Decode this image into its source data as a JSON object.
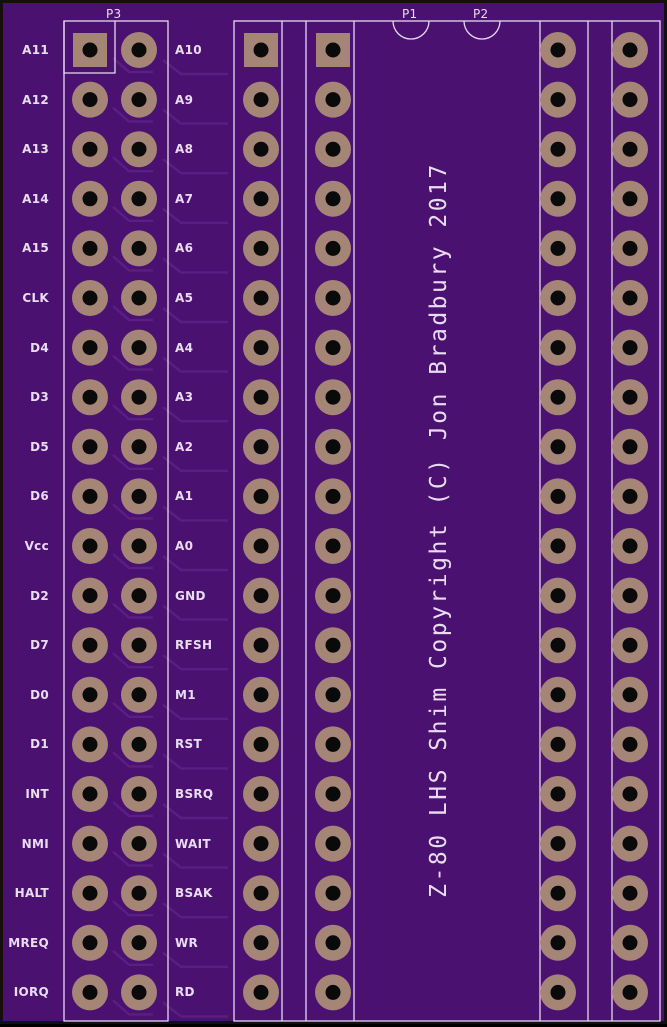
{
  "board": {
    "title": "Z-80 LHS Shim Copyright (C) Jon Bradbury 2017",
    "colors": {
      "substrate": "#4a1170",
      "silkscreen": "#e6d9ef",
      "pad": "#a58576",
      "drill": "#0a0a0a"
    }
  },
  "references": {
    "p1": "P1",
    "p2": "P2",
    "p3": "P3"
  },
  "pins_left": [
    "A11",
    "A12",
    "A13",
    "A14",
    "A15",
    "CLK",
    "D4",
    "D3",
    "D5",
    "D6",
    "Vcc",
    "D2",
    "D7",
    "D0",
    "D1",
    "INT",
    "NMI",
    "HALT",
    "MREQ",
    "IORQ"
  ],
  "pins_right": [
    "A10",
    "A9",
    "A8",
    "A7",
    "A6",
    "A5",
    "A4",
    "A3",
    "A2",
    "A1",
    "A0",
    "GND",
    "RFSH",
    "M1",
    "RST",
    "BSRQ",
    "WAIT",
    "BSAK",
    "WR",
    "RD"
  ]
}
